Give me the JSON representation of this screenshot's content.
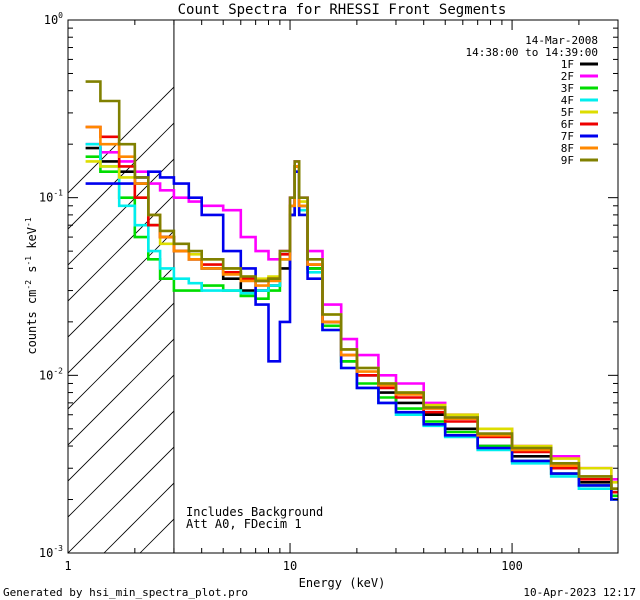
{
  "chart_data": {
    "type": "line",
    "title": "Count Spectra for RHESSI Front Segments",
    "xlabel": "Energy (keV)",
    "ylabel_main": "counts cm",
    "ylabel_sup1": "-2",
    "ylabel_mid": " s",
    "ylabel_sup2": "-1",
    "ylabel_end": " keV",
    "ylabel_sup3": "-1",
    "x_scale": "log",
    "y_scale": "log",
    "xlim": [
      1,
      300
    ],
    "ylim": [
      0.001,
      1
    ],
    "x_ticks": [
      {
        "value": 1,
        "label": "1"
      },
      {
        "value": 10,
        "label": "10"
      },
      {
        "value": 100,
        "label": "100"
      }
    ],
    "y_ticks": [
      {
        "value": 0.001,
        "base": "10",
        "exp": "-3"
      },
      {
        "value": 0.01,
        "base": "10",
        "exp": "-2"
      },
      {
        "value": 0.1,
        "base": "10",
        "exp": "-1"
      },
      {
        "value": 1,
        "base": "10",
        "exp": "0"
      }
    ],
    "date": "14-Mar-2008",
    "time_range": "14:38:00 to 14:39:00",
    "hatched_region_xmax": 3,
    "annotations": [
      "Includes Background",
      "Att A0, FDecim 1"
    ],
    "series": [
      {
        "name": "1F",
        "color": "#000000",
        "values": [
          [
            1.2,
            0.19
          ],
          [
            1.4,
            0.16
          ],
          [
            1.7,
            0.14
          ],
          [
            2,
            0.12
          ],
          [
            2.3,
            0.07
          ],
          [
            2.6,
            0.06
          ],
          [
            3,
            0.05
          ],
          [
            3.5,
            0.045
          ],
          [
            4,
            0.04
          ],
          [
            5,
            0.035
          ],
          [
            6,
            0.03
          ],
          [
            7,
            0.03
          ],
          [
            8,
            0.032
          ],
          [
            9,
            0.04
          ],
          [
            10,
            0.08
          ],
          [
            10.5,
            0.15
          ],
          [
            11,
            0.09
          ],
          [
            12,
            0.04
          ],
          [
            14,
            0.02
          ],
          [
            17,
            0.012
          ],
          [
            20,
            0.01
          ],
          [
            25,
            0.008
          ],
          [
            30,
            0.007
          ],
          [
            40,
            0.006
          ],
          [
            50,
            0.005
          ],
          [
            70,
            0.004
          ],
          [
            100,
            0.0035
          ],
          [
            150,
            0.003
          ],
          [
            200,
            0.0025
          ],
          [
            280,
            0.0022
          ]
        ]
      },
      {
        "name": "2F",
        "color": "#ff00ff",
        "values": [
          [
            1.2,
            0.2
          ],
          [
            1.4,
            0.18
          ],
          [
            1.7,
            0.16
          ],
          [
            2,
            0.14
          ],
          [
            2.3,
            0.12
          ],
          [
            2.6,
            0.11
          ],
          [
            3,
            0.1
          ],
          [
            3.5,
            0.095
          ],
          [
            4,
            0.09
          ],
          [
            5,
            0.085
          ],
          [
            6,
            0.06
          ],
          [
            7,
            0.05
          ],
          [
            8,
            0.045
          ],
          [
            9,
            0.05
          ],
          [
            10,
            0.1
          ],
          [
            10.5,
            0.16
          ],
          [
            11,
            0.1
          ],
          [
            12,
            0.05
          ],
          [
            14,
            0.025
          ],
          [
            17,
            0.016
          ],
          [
            20,
            0.013
          ],
          [
            25,
            0.01
          ],
          [
            30,
            0.009
          ],
          [
            40,
            0.007
          ],
          [
            50,
            0.006
          ],
          [
            70,
            0.005
          ],
          [
            100,
            0.004
          ],
          [
            150,
            0.0035
          ],
          [
            200,
            0.003
          ],
          [
            280,
            0.0026
          ]
        ]
      },
      {
        "name": "3F",
        "color": "#00dd00",
        "values": [
          [
            1.2,
            0.17
          ],
          [
            1.4,
            0.14
          ],
          [
            1.7,
            0.1
          ],
          [
            2,
            0.06
          ],
          [
            2.3,
            0.045
          ],
          [
            2.6,
            0.035
          ],
          [
            3,
            0.03
          ],
          [
            3.5,
            0.03
          ],
          [
            4,
            0.032
          ],
          [
            5,
            0.03
          ],
          [
            6,
            0.028
          ],
          [
            7,
            0.027
          ],
          [
            8,
            0.03
          ],
          [
            9,
            0.045
          ],
          [
            10,
            0.09
          ],
          [
            10.5,
            0.15
          ],
          [
            11,
            0.09
          ],
          [
            12,
            0.04
          ],
          [
            14,
            0.019
          ],
          [
            17,
            0.012
          ],
          [
            20,
            0.009
          ],
          [
            25,
            0.0075
          ],
          [
            30,
            0.0065
          ],
          [
            40,
            0.0055
          ],
          [
            50,
            0.0048
          ],
          [
            70,
            0.004
          ],
          [
            100,
            0.0033
          ],
          [
            150,
            0.0028
          ],
          [
            200,
            0.0024
          ],
          [
            280,
            0.0021
          ]
        ]
      },
      {
        "name": "4F",
        "color": "#00eeee",
        "values": [
          [
            1.2,
            0.2
          ],
          [
            1.4,
            0.15
          ],
          [
            1.7,
            0.09
          ],
          [
            2,
            0.07
          ],
          [
            2.3,
            0.05
          ],
          [
            2.6,
            0.04
          ],
          [
            3,
            0.035
          ],
          [
            3.5,
            0.033
          ],
          [
            4,
            0.03
          ],
          [
            5,
            0.03
          ],
          [
            6,
            0.029
          ],
          [
            7,
            0.03
          ],
          [
            8,
            0.032
          ],
          [
            9,
            0.045
          ],
          [
            10,
            0.09
          ],
          [
            10.5,
            0.14
          ],
          [
            11,
            0.085
          ],
          [
            12,
            0.038
          ],
          [
            14,
            0.018
          ],
          [
            17,
            0.011
          ],
          [
            20,
            0.0085
          ],
          [
            25,
            0.007
          ],
          [
            30,
            0.006
          ],
          [
            40,
            0.0052
          ],
          [
            50,
            0.0045
          ],
          [
            70,
            0.0038
          ],
          [
            100,
            0.0032
          ],
          [
            150,
            0.0027
          ],
          [
            200,
            0.0023
          ],
          [
            280,
            0.002
          ]
        ]
      },
      {
        "name": "5F",
        "color": "#dddd00",
        "values": [
          [
            1.2,
            0.16
          ],
          [
            1.4,
            0.15
          ],
          [
            1.7,
            0.13
          ],
          [
            2,
            0.1
          ],
          [
            2.3,
            0.07
          ],
          [
            2.6,
            0.055
          ],
          [
            3,
            0.05
          ],
          [
            3.5,
            0.048
          ],
          [
            4,
            0.045
          ],
          [
            5,
            0.04
          ],
          [
            6,
            0.036
          ],
          [
            7,
            0.035
          ],
          [
            8,
            0.036
          ],
          [
            9,
            0.045
          ],
          [
            10,
            0.09
          ],
          [
            10.5,
            0.15
          ],
          [
            11,
            0.095
          ],
          [
            12,
            0.045
          ],
          [
            14,
            0.022
          ],
          [
            17,
            0.014
          ],
          [
            20,
            0.011
          ],
          [
            25,
            0.009
          ],
          [
            30,
            0.008
          ],
          [
            40,
            0.0068
          ],
          [
            50,
            0.006
          ],
          [
            70,
            0.005
          ],
          [
            100,
            0.004
          ],
          [
            150,
            0.0034
          ],
          [
            200,
            0.003
          ],
          [
            280,
            0.0025
          ]
        ]
      },
      {
        "name": "6F",
        "color": "#ee0000",
        "values": [
          [
            1.2,
            0.25
          ],
          [
            1.4,
            0.22
          ],
          [
            1.7,
            0.15
          ],
          [
            2,
            0.1
          ],
          [
            2.3,
            0.07
          ],
          [
            2.6,
            0.06
          ],
          [
            3,
            0.05
          ],
          [
            3.5,
            0.045
          ],
          [
            4,
            0.042
          ],
          [
            5,
            0.038
          ],
          [
            6,
            0.035
          ],
          [
            7,
            0.034
          ],
          [
            8,
            0.035
          ],
          [
            9,
            0.048
          ],
          [
            10,
            0.09
          ],
          [
            10.5,
            0.15
          ],
          [
            11,
            0.09
          ],
          [
            12,
            0.042
          ],
          [
            14,
            0.02
          ],
          [
            17,
            0.013
          ],
          [
            20,
            0.01
          ],
          [
            25,
            0.0085
          ],
          [
            30,
            0.0075
          ],
          [
            40,
            0.0062
          ],
          [
            50,
            0.0055
          ],
          [
            70,
            0.0045
          ],
          [
            100,
            0.0037
          ],
          [
            150,
            0.003
          ],
          [
            200,
            0.0026
          ],
          [
            280,
            0.0022
          ]
        ]
      },
      {
        "name": "7F",
        "color": "#0000ee",
        "values": [
          [
            1.2,
            0.12
          ],
          [
            1.4,
            0.12
          ],
          [
            1.7,
            0.12
          ],
          [
            2,
            0.13
          ],
          [
            2.3,
            0.14
          ],
          [
            2.6,
            0.13
          ],
          [
            3,
            0.12
          ],
          [
            3.5,
            0.1
          ],
          [
            4,
            0.08
          ],
          [
            5,
            0.05
          ],
          [
            6,
            0.04
          ],
          [
            7,
            0.025
          ],
          [
            8,
            0.012
          ],
          [
            9,
            0.02
          ],
          [
            10,
            0.08
          ],
          [
            10.5,
            0.14
          ],
          [
            11,
            0.08
          ],
          [
            12,
            0.035
          ],
          [
            14,
            0.018
          ],
          [
            17,
            0.011
          ],
          [
            20,
            0.0085
          ],
          [
            25,
            0.007
          ],
          [
            30,
            0.0062
          ],
          [
            40,
            0.0053
          ],
          [
            50,
            0.0046
          ],
          [
            70,
            0.0039
          ],
          [
            100,
            0.0033
          ],
          [
            150,
            0.0028
          ],
          [
            200,
            0.0024
          ],
          [
            280,
            0.002
          ]
        ]
      },
      {
        "name": "8F",
        "color": "#ff8800",
        "values": [
          [
            1.2,
            0.25
          ],
          [
            1.4,
            0.2
          ],
          [
            1.7,
            0.17
          ],
          [
            2,
            0.12
          ],
          [
            2.3,
            0.08
          ],
          [
            2.6,
            0.06
          ],
          [
            3,
            0.05
          ],
          [
            3.5,
            0.045
          ],
          [
            4,
            0.04
          ],
          [
            5,
            0.037
          ],
          [
            6,
            0.034
          ],
          [
            7,
            0.032
          ],
          [
            8,
            0.034
          ],
          [
            9,
            0.045
          ],
          [
            10,
            0.09
          ],
          [
            10.5,
            0.15
          ],
          [
            11,
            0.09
          ],
          [
            12,
            0.042
          ],
          [
            14,
            0.02
          ],
          [
            17,
            0.013
          ],
          [
            20,
            0.0105
          ],
          [
            25,
            0.0088
          ],
          [
            30,
            0.0078
          ],
          [
            40,
            0.0065
          ],
          [
            50,
            0.0057
          ],
          [
            70,
            0.0046
          ],
          [
            100,
            0.0038
          ],
          [
            150,
            0.0031
          ],
          [
            200,
            0.0027
          ],
          [
            280,
            0.0023
          ]
        ]
      },
      {
        "name": "9F",
        "color": "#808000",
        "values": [
          [
            1.2,
            0.45
          ],
          [
            1.4,
            0.35
          ],
          [
            1.7,
            0.2
          ],
          [
            2,
            0.13
          ],
          [
            2.3,
            0.08
          ],
          [
            2.6,
            0.065
          ],
          [
            3,
            0.055
          ],
          [
            3.5,
            0.05
          ],
          [
            4,
            0.045
          ],
          [
            5,
            0.04
          ],
          [
            6,
            0.036
          ],
          [
            7,
            0.034
          ],
          [
            8,
            0.035
          ],
          [
            9,
            0.05
          ],
          [
            10,
            0.1
          ],
          [
            10.5,
            0.16
          ],
          [
            11,
            0.1
          ],
          [
            12,
            0.045
          ],
          [
            14,
            0.022
          ],
          [
            17,
            0.014
          ],
          [
            20,
            0.011
          ],
          [
            25,
            0.009
          ],
          [
            30,
            0.008
          ],
          [
            40,
            0.0066
          ],
          [
            50,
            0.0058
          ],
          [
            70,
            0.0047
          ],
          [
            100,
            0.0039
          ],
          [
            150,
            0.0032
          ],
          [
            200,
            0.0027
          ],
          [
            280,
            0.0023
          ]
        ]
      }
    ]
  },
  "footer": {
    "left": "Generated by hsi_min_spectra_plot.pro",
    "right": "10-Apr-2023 12:17"
  }
}
